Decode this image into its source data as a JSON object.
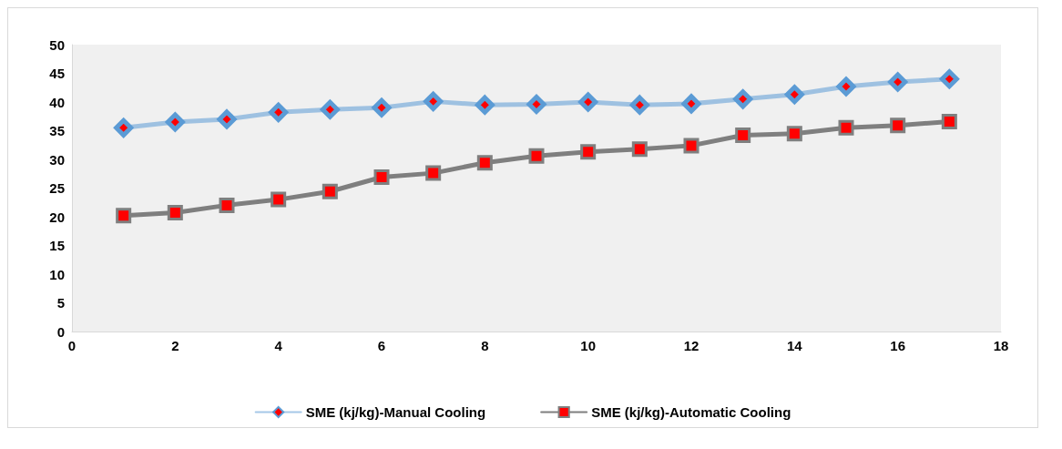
{
  "chart_data": {
    "type": "line",
    "x": [
      1,
      2,
      3,
      4,
      5,
      6,
      7,
      8,
      9,
      10,
      11,
      12,
      13,
      14,
      15,
      16,
      17
    ],
    "series": [
      {
        "name": "SME (kj/kg)-Manual Cooling",
        "color": "#5b9bd5",
        "marker": "diamond",
        "values": [
          35.5,
          36.5,
          37.0,
          38.2,
          38.7,
          39.0,
          40.1,
          39.5,
          39.6,
          40.0,
          39.5,
          39.7,
          40.5,
          41.3,
          42.7,
          43.5,
          44.0
        ]
      },
      {
        "name": "SME (kj/kg)-Automatic Cooling",
        "color": "#7f7f7f",
        "marker": "square",
        "values": [
          20.2,
          20.7,
          22.0,
          23.0,
          24.4,
          26.9,
          27.6,
          29.4,
          30.6,
          31.3,
          31.8,
          32.4,
          34.2,
          34.5,
          35.5,
          35.9,
          36.6
        ]
      }
    ],
    "xlim": [
      0,
      18
    ],
    "xticks": [
      0,
      2,
      4,
      6,
      8,
      10,
      12,
      14,
      16,
      18
    ],
    "ylim": [
      0,
      50
    ],
    "yticks": [
      0,
      5,
      10,
      15,
      20,
      25,
      30,
      35,
      40,
      45,
      50
    ],
    "grid": false,
    "legend": "bottom"
  }
}
